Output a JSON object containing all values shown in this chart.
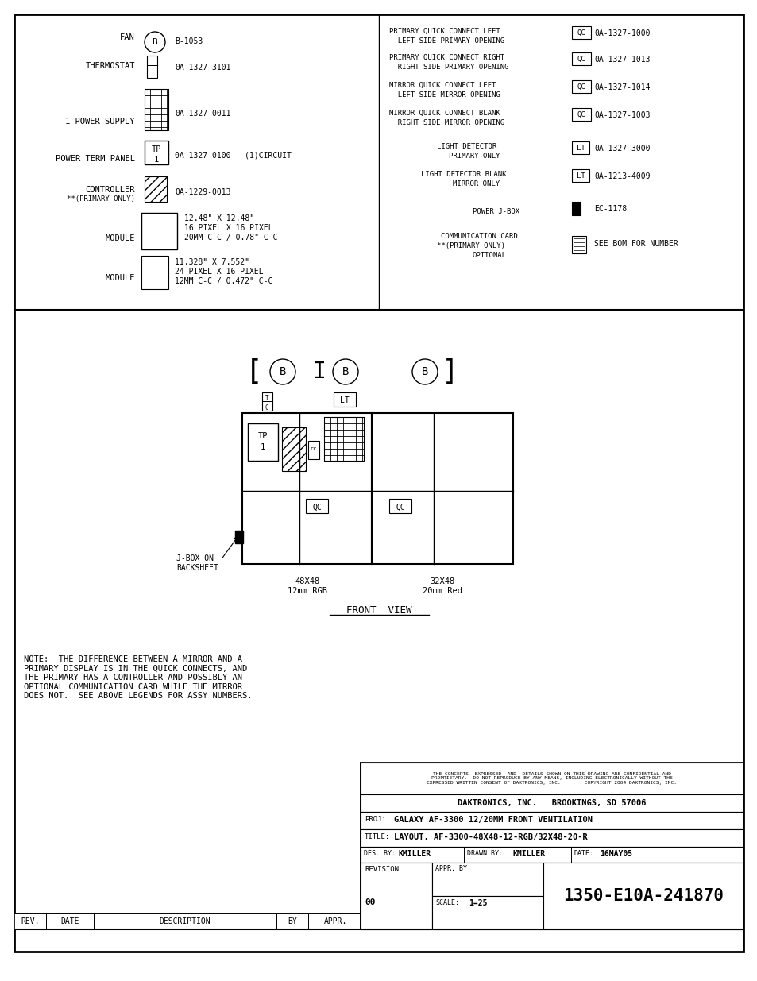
{
  "bg_color": "#ffffff",
  "note_text": "NOTE:  THE DIFFERENCE BETWEEN A MIRROR AND A\nPRIMARY DISPLAY IS IN THE QUICK CONNECTS, AND\nTHE PRIMARY HAS A CONTROLLER AND POSSIBLY AN\nOPTIONAL COMMUNICATION CARD WHILE THE MIRROR\nDOES NOT.  SEE ABOVE LEGENDS FOR ASSY NUMBERS.",
  "disclaimer_line1": "THE CONCEPTS  EXPRESSED  AND  DETAILS SHOWN ON THIS DRAWING ARE CONFIDENTIAL AND",
  "disclaimer_line2": "PROPRIETARY.  DO NOT REPRODUCE BY ANY MEANS, INCLUDING ELECTRONICALLY WITHOUT THE",
  "disclaimer_line3": "EXPRESSED WRITTEN CONSENT OF DAKTRONICS, INC.        COPYRIGHT 2004 DAKTRONICS, INC.",
  "company": "DAKTRONICS, INC.   BROOKINGS, SD 57006",
  "proj_label": "PROJ:",
  "proj_value": "GALAXY AF-3300 12/20MM FRONT VENTILATION",
  "title_label": "TITLE:",
  "title_value": "LAYOUT, AF-3300-48X48-12-RGB/32X48-20-R",
  "des_label": "DES. BY:",
  "des_value": "KMILLER",
  "drawn_label": "DRAWN BY:",
  "drawn_value": "KMILLER",
  "date_label": "DATE:",
  "date_value": "16MAY05",
  "revision_label": "REVISION",
  "revision_value": "00",
  "appr_label": "APPR. BY:",
  "scale_label": "SCALE:",
  "scale_value": "1=25",
  "drawing_number": "1350-E10A-241870",
  "rev_label": "REV.",
  "date_col": "DATE",
  "desc_col": "DESCRIPTION",
  "by_col": "BY",
  "appr_col": "APPR."
}
